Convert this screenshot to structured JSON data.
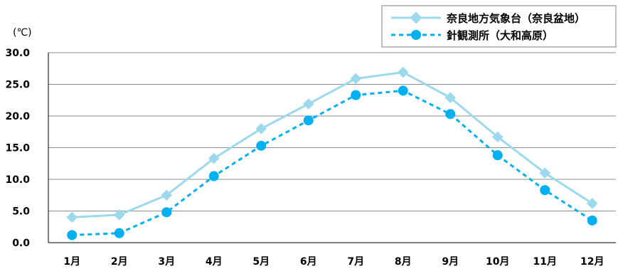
{
  "chart_data": {
    "type": "line",
    "title": "",
    "ylabel": "(℃)",
    "xlabel": "",
    "ylim": [
      0,
      30
    ],
    "yticks": [
      "0.0",
      "5.0",
      "10.0",
      "15.0",
      "20.0",
      "25.0",
      "30.0"
    ],
    "categories": [
      "1月",
      "2月",
      "3月",
      "4月",
      "5月",
      "6月",
      "7月",
      "8月",
      "9月",
      "10月",
      "11月",
      "12月"
    ],
    "grid": true,
    "legend_position": "top-right",
    "series": [
      {
        "name": "奈良地方気象台（奈良盆地）",
        "color": "#9DD9EC",
        "marker": "diamond",
        "line_style": "solid",
        "values": [
          4.0,
          4.4,
          7.5,
          13.3,
          18.0,
          21.9,
          25.9,
          26.9,
          22.9,
          16.7,
          11.0,
          6.2
        ]
      },
      {
        "name": "針観測所（大和高原）",
        "color": "#00B0F0",
        "marker": "circle",
        "line_style": "dashed",
        "values": [
          1.2,
          1.5,
          4.8,
          10.5,
          15.3,
          19.3,
          23.3,
          24.0,
          20.3,
          13.8,
          8.3,
          3.5
        ]
      }
    ]
  }
}
